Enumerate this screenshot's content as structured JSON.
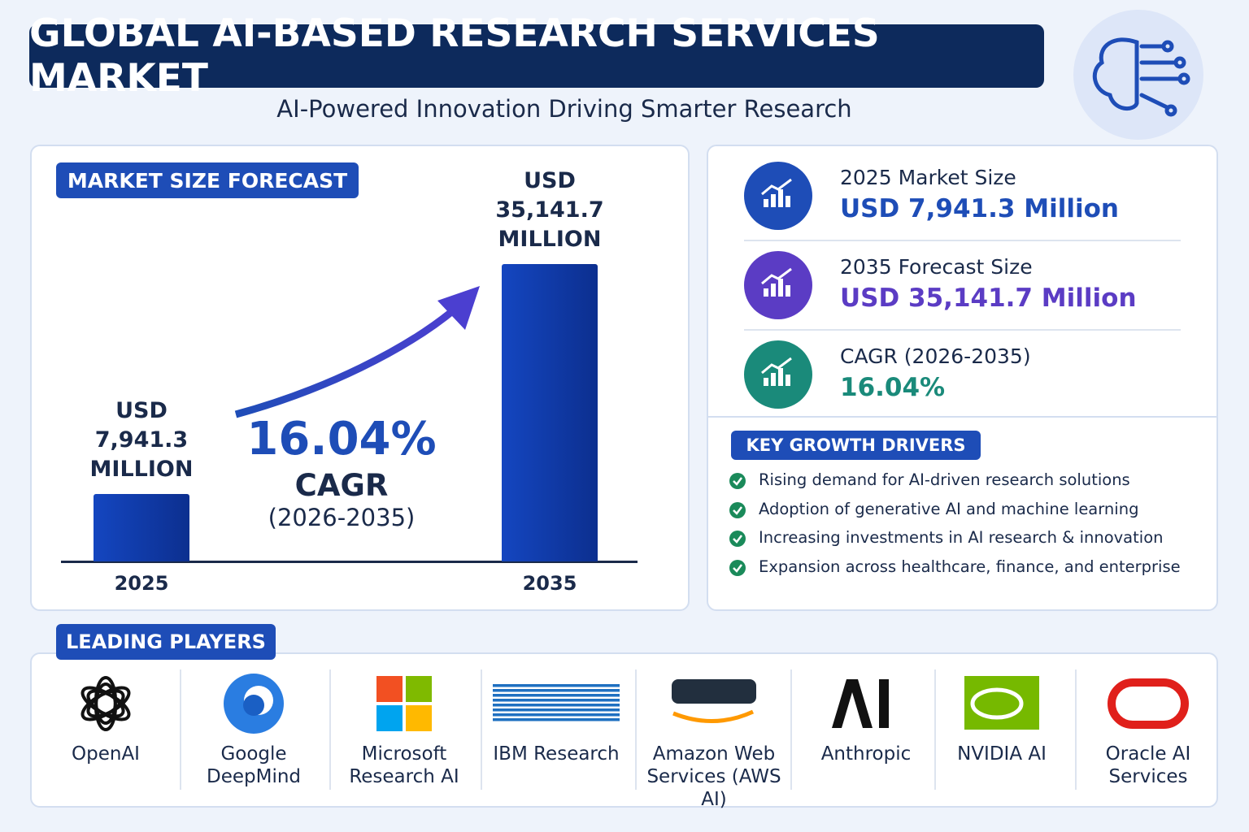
{
  "header": {
    "title": "GLOBAL AI-BASED RESEARCH SERVICES MARKET",
    "subtitle": "AI-Powered Innovation Driving Smarter Research"
  },
  "chart_data": {
    "type": "bar",
    "title": "MARKET SIZE FORECAST",
    "categories": [
      "2025",
      "2035"
    ],
    "values": [
      7941.3,
      35141.7
    ],
    "value_labels": [
      "USD 7,941.3 MILLION",
      "USD 35,141.7 MILLION"
    ],
    "color": "#1446c0",
    "annotation": {
      "value": "16.04%",
      "label": "CAGR",
      "period": "(2026-2035)"
    }
  },
  "kpis": [
    {
      "label": "2025 Market Size",
      "value": "USD 7,941.3 Million",
      "color": "#1e4db7"
    },
    {
      "label": "2035 Forecast Size",
      "value": "USD 35,141.7 Million",
      "color": "#5b3cc4"
    },
    {
      "label": "CAGR (2026-2035)",
      "value": "16.04%",
      "color": "#1a8a7a"
    }
  ],
  "drivers": {
    "title": "KEY GROWTH DRIVERS",
    "items": [
      "Rising demand for AI-driven research solutions",
      "Adoption of generative AI and machine learning",
      "Increasing investments in AI research & innovation",
      "Expansion across healthcare, finance, and enterprise"
    ]
  },
  "players": {
    "title": "LEADING PLAYERS",
    "items": [
      "OpenAI",
      "Google DeepMind",
      "Microsoft Research AI",
      "IBM Research",
      "Amazon Web Services (AWS AI)",
      "Anthropic",
      "NVIDIA AI",
      "Oracle AI Services"
    ]
  }
}
